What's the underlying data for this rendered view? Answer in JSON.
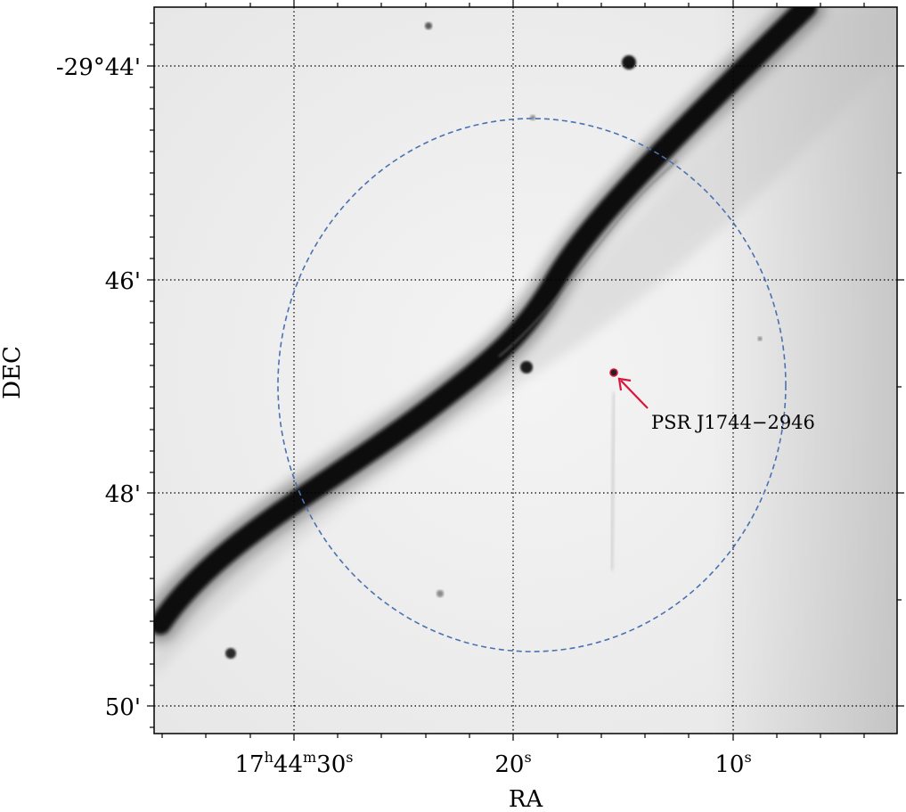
{
  "axes": {
    "xlabel": "RA",
    "ylabel": "DEC",
    "ra_ticks": [
      {
        "h": "17",
        "m": "44",
        "s": "30",
        "text": "17h44m30s"
      },
      {
        "s": "20",
        "text": "20s"
      },
      {
        "s": "10",
        "text": "10s"
      }
    ],
    "dec_ticks": [
      {
        "text": "-29°44'"
      },
      {
        "text": "46'"
      },
      {
        "text": "48'"
      },
      {
        "text": "50'"
      }
    ],
    "grid": "dotted",
    "grid_on": true
  },
  "image": {
    "colormap": "inverted-grayscale",
    "feature": "bright diagonal radio filament from lower-left to upper-right",
    "compact_sources": 6
  },
  "annotation": {
    "label": "PSR J1744−2946",
    "arrow_color": "#dc143c",
    "circle_color": "#4a72b0",
    "circle_style": "dashed"
  }
}
